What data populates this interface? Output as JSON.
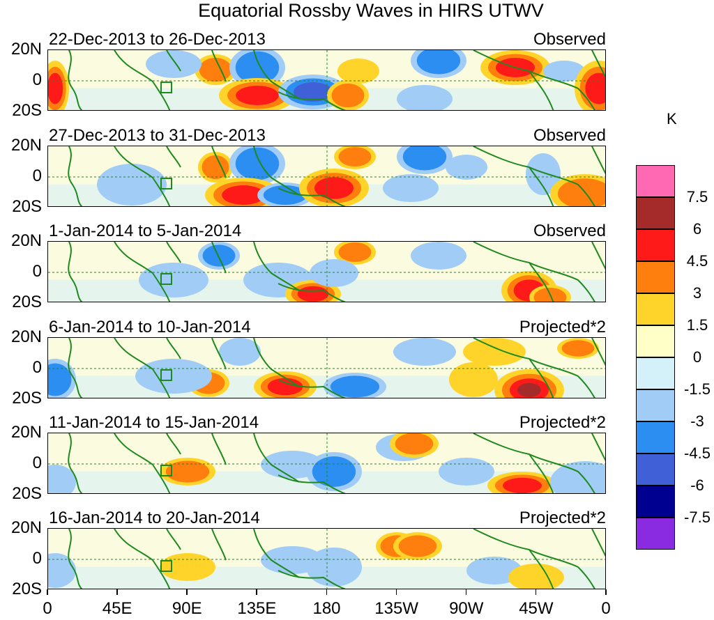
{
  "title": "Equatorial Rossby Waves in HIRS UTWV",
  "y_ticks": [
    "20N",
    "0",
    "20S"
  ],
  "x_ticks": [
    "0",
    "45E",
    "90E",
    "135E",
    "180",
    "135W",
    "90W",
    "45W",
    "0"
  ],
  "colorbar": {
    "unit": "K",
    "labels": [
      "7.5",
      "6",
      "4.5",
      "3",
      "1.5",
      "0",
      "-1.5",
      "-3",
      "-4.5",
      "-6",
      "-7.5"
    ],
    "colors": [
      "#ff69b4",
      "#a52a2a",
      "#ff1a1a",
      "#ff7f0e",
      "#ffd42a",
      "#ffffc8",
      "#d4f0f8",
      "#a0ccf5",
      "#2b8ef0",
      "#4060d8",
      "#000090",
      "#8a2be2"
    ]
  },
  "panels": [
    {
      "date": "22-Dec-2013 to 26-Dec-2013",
      "type": "Observed"
    },
    {
      "date": "27-Dec-2013 to 31-Dec-2013",
      "type": "Observed"
    },
    {
      "date": "1-Jan-2014 to 5-Jan-2014",
      "type": "Observed"
    },
    {
      "date": "6-Jan-2014 to 10-Jan-2014",
      "type": "Projected*2"
    },
    {
      "date": "11-Jan-2014 to 15-Jan-2014",
      "type": "Projected*2"
    },
    {
      "date": "16-Jan-2014 to 20-Jan-2014",
      "type": "Projected*2"
    }
  ]
}
